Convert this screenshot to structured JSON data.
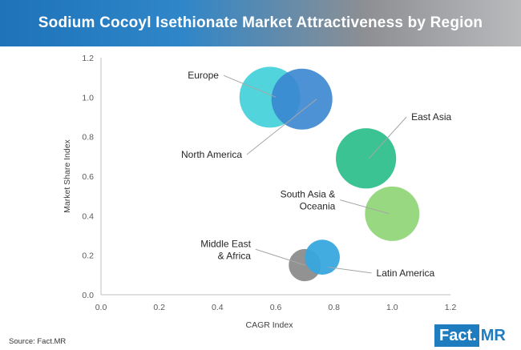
{
  "header": {
    "title": "Sodium Cocoyl Isethionate Market Attractiveness by Region"
  },
  "footer": {
    "source": "Source: Fact.MR",
    "logo_left": "Fact.",
    "logo_right": "MR"
  },
  "chart_data": {
    "type": "bubble",
    "title": "Sodium Cocoyl Isethionate Market Attractiveness by Region",
    "xlabel": "CAGR Index",
    "ylabel": "Market Share Index",
    "xlim": [
      0,
      1.2
    ],
    "ylim": [
      0,
      1.2
    ],
    "xticks": [
      "0.0",
      "0.2",
      "0.4",
      "0.6",
      "0.8",
      "1.0",
      "1.2"
    ],
    "yticks": [
      "0.0",
      "0.2",
      "0.4",
      "0.6",
      "0.8",
      "1.0",
      "1.2"
    ],
    "grid": false,
    "series": [
      {
        "name": "Europe",
        "x": 0.58,
        "y": 1.0,
        "size": 1.0,
        "color": "#3fcfd8",
        "opacity": 0.9,
        "label": "Europe",
        "label_at": [
          0.41,
          1.11
        ],
        "anchor": [
          0.6,
          1.0
        ]
      },
      {
        "name": "North America",
        "x": 0.69,
        "y": 0.99,
        "size": 1.0,
        "color": "#3a86d0",
        "opacity": 0.9,
        "label": "North America",
        "label_at": [
          0.49,
          0.71
        ],
        "anchor": [
          0.74,
          0.99
        ]
      },
      {
        "name": "East Asia",
        "x": 0.91,
        "y": 0.69,
        "size": 0.98,
        "color": "#32c08e",
        "opacity": 0.95,
        "label": "East Asia",
        "label_at": [
          1.06,
          0.9
        ],
        "anchor": [
          0.92,
          0.69
        ]
      },
      {
        "name": "South Asia & Oceania",
        "x": 1.0,
        "y": 0.41,
        "size": 0.8,
        "color": "#92d67a",
        "opacity": 0.95,
        "label": "South Asia &\nOceania",
        "label_at": [
          0.81,
          0.48
        ],
        "anchor": [
          0.99,
          0.41
        ]
      },
      {
        "name": "Middle East & Africa",
        "x": 0.7,
        "y": 0.15,
        "size": 0.28,
        "color": "#8c8c8c",
        "opacity": 0.95,
        "label": "Middle East\n& Africa",
        "label_at": [
          0.52,
          0.23
        ],
        "anchor": [
          0.7,
          0.15
        ]
      },
      {
        "name": "Latin America",
        "x": 0.76,
        "y": 0.19,
        "size": 0.33,
        "color": "#38a6de",
        "opacity": 0.95,
        "label": "Latin America",
        "label_at": [
          0.94,
          0.11
        ],
        "anchor": [
          0.78,
          0.14
        ]
      }
    ]
  }
}
